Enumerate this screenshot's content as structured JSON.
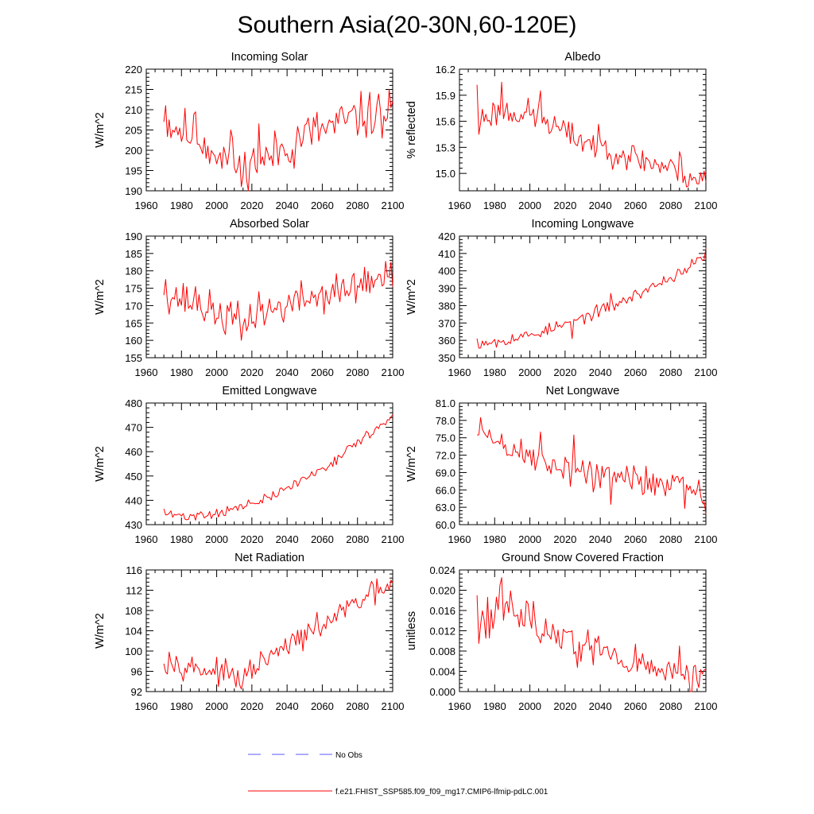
{
  "figure": {
    "title": "Southern Asia(20-30N,60-120E)",
    "legend": {
      "obs_label": "No Obs",
      "model_label": "f.e21.FHIST_SSP585.f09_f09_mg17.CMIP6-lfmip-pdLC.001"
    },
    "colors": {
      "model": "#ff0000",
      "obs": "#5a5aff",
      "axis": "#000000"
    }
  },
  "chart_data": [
    {
      "type": "line",
      "title": "Incoming Solar",
      "ylabel": "W/m^2",
      "xlim": [
        1960,
        2100
      ],
      "ylim": [
        190,
        220
      ],
      "xticks": [
        "1960",
        "1980",
        "2000",
        "2020",
        "2040",
        "2060",
        "2080",
        "2100"
      ],
      "yticks": [
        "190",
        "195",
        "200",
        "205",
        "210",
        "215",
        "220"
      ],
      "series": [
        {
          "name": "model",
          "x_start": 1970,
          "x_end": 2100,
          "anchors": [
            [
              1970,
              207.5
            ],
            [
              1980,
              205
            ],
            [
              1990,
              203
            ],
            [
              2000,
              200
            ],
            [
              2010,
              197
            ],
            [
              2015,
              195
            ],
            [
              2020,
              197
            ],
            [
              2030,
              198
            ],
            [
              2040,
              201.5
            ],
            [
              2050,
              204
            ],
            [
              2060,
              205
            ],
            [
              2070,
              206.5
            ],
            [
              2080,
              208
            ],
            [
              2090,
              209
            ],
            [
              2100,
              210
            ]
          ],
          "amplitude": 5,
          "seed": 11,
          "points": [
            [
              1970,
              207
            ],
            [
              1971,
              211
            ],
            [
              1984,
              202
            ],
            [
              1988,
              209.5
            ],
            [
              1994,
              198
            ],
            [
              2003,
              195.5
            ],
            [
              2008,
              205
            ],
            [
              2014,
              191
            ],
            [
              2024,
              206.5
            ],
            [
              2044,
              195.5
            ],
            [
              2094,
              203
            ],
            [
              2098,
              215
            ]
          ]
        }
      ]
    },
    {
      "type": "line",
      "title": "Albedo",
      "ylabel": "% reflected",
      "xlim": [
        1960,
        2100
      ],
      "ylim": [
        14.8,
        16.2
      ],
      "xticks": [
        "1960",
        "1980",
        "2000",
        "2020",
        "2040",
        "2060",
        "2080",
        "2100"
      ],
      "yticks": [
        "15.0",
        "15.3",
        "15.6",
        "15.9",
        "16.2"
      ],
      "series": [
        {
          "name": "model",
          "x_start": 1970,
          "x_end": 2100,
          "anchors": [
            [
              1970,
              15.62
            ],
            [
              1980,
              15.7
            ],
            [
              1990,
              15.72
            ],
            [
              2000,
              15.68
            ],
            [
              2010,
              15.6
            ],
            [
              2020,
              15.45
            ],
            [
              2030,
              15.38
            ],
            [
              2040,
              15.32
            ],
            [
              2050,
              15.25
            ],
            [
              2060,
              15.18
            ],
            [
              2070,
              15.12
            ],
            [
              2080,
              15.06
            ],
            [
              2090,
              14.98
            ],
            [
              2100,
              14.93
            ]
          ],
          "amplitude": 0.15,
          "seed": 23,
          "points": [
            [
              1970,
              16.02
            ],
            [
              1971,
              15.45
            ],
            [
              1984,
              16.05
            ],
            [
              1990,
              15.6
            ],
            [
              2006,
              15.95
            ],
            [
              2012,
              15.48
            ],
            [
              2024,
              15.58
            ],
            [
              2038,
              15.27
            ],
            [
              2085,
              15.25
            ],
            [
              2095,
              14.88
            ],
            [
              2100,
              14.9
            ]
          ]
        }
      ]
    },
    {
      "type": "line",
      "title": "Absorbed Solar",
      "ylabel": "W/m^2",
      "xlim": [
        1960,
        2100
      ],
      "ylim": [
        155,
        190
      ],
      "xticks": [
        "1960",
        "1980",
        "2000",
        "2020",
        "2040",
        "2060",
        "2080",
        "2100"
      ],
      "yticks": [
        "155",
        "160",
        "165",
        "170",
        "175",
        "180",
        "185",
        "190"
      ],
      "series": [
        {
          "name": "model",
          "x_start": 1970,
          "x_end": 2100,
          "anchors": [
            [
              1970,
              174
            ],
            [
              1980,
              172
            ],
            [
              1990,
              170
            ],
            [
              2000,
              168
            ],
            [
              2010,
              166
            ],
            [
              2015,
              165
            ],
            [
              2020,
              167
            ],
            [
              2030,
              168.5
            ],
            [
              2040,
              170
            ],
            [
              2050,
              172
            ],
            [
              2060,
              173
            ],
            [
              2070,
              174
            ],
            [
              2080,
              175.5
            ],
            [
              2090,
              177
            ],
            [
              2100,
              178
            ]
          ],
          "amplitude": 4.5,
          "seed": 37,
          "points": [
            [
              1970,
              173
            ],
            [
              1971,
              177.5
            ],
            [
              1988,
              175.5
            ],
            [
              2004,
              163
            ],
            [
              2014,
              160
            ],
            [
              2024,
              174
            ],
            [
              2084,
              181
            ],
            [
              2099,
              182.5
            ]
          ]
        }
      ]
    },
    {
      "type": "line",
      "title": "Incoming Longwave",
      "ylabel": "W/m^2",
      "xlim": [
        1960,
        2100
      ],
      "ylim": [
        350,
        420
      ],
      "xticks": [
        "1960",
        "1980",
        "2000",
        "2020",
        "2040",
        "2060",
        "2080",
        "2100"
      ],
      "yticks": [
        "350",
        "360",
        "370",
        "380",
        "390",
        "400",
        "410",
        "420"
      ],
      "series": [
        {
          "name": "model",
          "x_start": 1970,
          "x_end": 2100,
          "anchors": [
            [
              1970,
              359
            ],
            [
              1980,
              360
            ],
            [
              1990,
              361
            ],
            [
              2000,
              363
            ],
            [
              2010,
              366
            ],
            [
              2020,
              369
            ],
            [
              2030,
              373
            ],
            [
              2040,
              377
            ],
            [
              2050,
              381
            ],
            [
              2060,
              386
            ],
            [
              2070,
              391
            ],
            [
              2080,
              396
            ],
            [
              2090,
              402
            ],
            [
              2100,
              408
            ]
          ],
          "amplitude": 3,
          "seed": 53,
          "points": [
            [
              1970,
              361
            ],
            [
              1971,
              355.5
            ],
            [
              1981,
              356
            ],
            [
              2024,
              361
            ],
            [
              2046,
              387
            ],
            [
              2098,
              406
            ],
            [
              2100,
              413
            ]
          ]
        }
      ]
    },
    {
      "type": "line",
      "title": "Emitted Longwave",
      "ylabel": "W/m^2",
      "xlim": [
        1960,
        2100
      ],
      "ylim": [
        430,
        480
      ],
      "xticks": [
        "1960",
        "1980",
        "2000",
        "2020",
        "2040",
        "2060",
        "2080",
        "2100"
      ],
      "yticks": [
        "430",
        "440",
        "450",
        "460",
        "470",
        "480"
      ],
      "series": [
        {
          "name": "model",
          "x_start": 1970,
          "x_end": 2100,
          "anchors": [
            [
              1970,
              434.5
            ],
            [
              1980,
              433.5
            ],
            [
              1990,
              434
            ],
            [
              2000,
              435
            ],
            [
              2010,
              436.5
            ],
            [
              2020,
              438.5
            ],
            [
              2030,
              441
            ],
            [
              2040,
              445
            ],
            [
              2050,
              449
            ],
            [
              2060,
              453
            ],
            [
              2070,
              458
            ],
            [
              2080,
              464
            ],
            [
              2090,
              469
            ],
            [
              2100,
              474
            ]
          ],
          "amplitude": 1.8,
          "seed": 71,
          "points": [
            [
              1970,
              436.5
            ],
            [
              1971,
              434
            ],
            [
              1983,
              432
            ],
            [
              1997,
              432.5
            ],
            [
              2096,
              471
            ],
            [
              2100,
              475
            ]
          ]
        }
      ]
    },
    {
      "type": "line",
      "title": "Net Longwave",
      "ylabel": "W/m^2",
      "xlim": [
        1960,
        2100
      ],
      "ylim": [
        60,
        81
      ],
      "xticks": [
        "1960",
        "1980",
        "2000",
        "2020",
        "2040",
        "2060",
        "2080",
        "2100"
      ],
      "yticks": [
        "60.0",
        "63.0",
        "66.0",
        "69.0",
        "72.0",
        "75.0",
        "78.0",
        "81.0"
      ],
      "series": [
        {
          "name": "model",
          "x_start": 1970,
          "x_end": 2100,
          "anchors": [
            [
              1970,
              76
            ],
            [
              1980,
              74.5
            ],
            [
              1990,
              73
            ],
            [
              2000,
              71.5
            ],
            [
              2010,
              70.5
            ],
            [
              2020,
              70
            ],
            [
              2030,
              69
            ],
            [
              2040,
              68.5
            ],
            [
              2050,
              68
            ],
            [
              2060,
              67.8
            ],
            [
              2070,
              67.5
            ],
            [
              2080,
              67.3
            ],
            [
              2090,
              67
            ],
            [
              2100,
              66
            ]
          ],
          "amplitude": 2.5,
          "seed": 89,
          "points": [
            [
              1970,
              75.5
            ],
            [
              1972,
              78.5
            ],
            [
              2006,
              76
            ],
            [
              2025,
              75.5
            ],
            [
              2046,
              63.5
            ],
            [
              2088,
              62.8
            ],
            [
              2100,
              61.8
            ]
          ]
        }
      ]
    },
    {
      "type": "line",
      "title": "Net Radiation",
      "ylabel": "W/m^2",
      "xlim": [
        1960,
        2100
      ],
      "ylim": [
        92,
        116
      ],
      "xticks": [
        "1960",
        "1980",
        "2000",
        "2020",
        "2040",
        "2060",
        "2080",
        "2100"
      ],
      "yticks": [
        "92",
        "96",
        "100",
        "104",
        "108",
        "112",
        "116"
      ],
      "series": [
        {
          "name": "model",
          "x_start": 1970,
          "x_end": 2100,
          "anchors": [
            [
              1970,
              98
            ],
            [
              1980,
              97.5
            ],
            [
              1990,
              96.5
            ],
            [
              2000,
              96
            ],
            [
              2010,
              95
            ],
            [
              2015,
              94
            ],
            [
              2020,
              96.5
            ],
            [
              2030,
              98.5
            ],
            [
              2040,
              101
            ],
            [
              2050,
              103
            ],
            [
              2060,
              105
            ],
            [
              2070,
              107.5
            ],
            [
              2080,
              109.5
            ],
            [
              2090,
              111.5
            ],
            [
              2100,
              113
            ]
          ],
          "amplitude": 2,
          "seed": 97,
          "points": [
            [
              1970,
              97.5
            ],
            [
              1973,
              99.8
            ],
            [
              2014,
              92.5
            ],
            [
              2099,
              114
            ]
          ]
        }
      ]
    },
    {
      "type": "line",
      "title": "Ground Snow Covered Fraction",
      "ylabel": "unitless",
      "xlim": [
        1960,
        2100
      ],
      "ylim": [
        0,
        0.024
      ],
      "xticks": [
        "1960",
        "1980",
        "2000",
        "2020",
        "2040",
        "2060",
        "2080",
        "2100"
      ],
      "yticks": [
        "0.000",
        "0.004",
        "0.008",
        "0.012",
        "0.016",
        "0.020",
        "0.024"
      ],
      "series": [
        {
          "name": "model",
          "x_start": 1970,
          "x_end": 2100,
          "anchors": [
            [
              1970,
              0.015
            ],
            [
              1980,
              0.016
            ],
            [
              1990,
              0.0165
            ],
            [
              2000,
              0.014
            ],
            [
              2010,
              0.012
            ],
            [
              2020,
              0.0105
            ],
            [
              2030,
              0.009
            ],
            [
              2040,
              0.008
            ],
            [
              2050,
              0.0065
            ],
            [
              2060,
              0.0055
            ],
            [
              2070,
              0.0045
            ],
            [
              2080,
              0.0038
            ],
            [
              2090,
              0.0025
            ],
            [
              2095,
              0.0012
            ],
            [
              2100,
              0.003
            ]
          ],
          "amplitude": 0.0035,
          "seed": 113,
          "points": [
            [
              1970,
              0.019
            ],
            [
              1971,
              0.0095
            ],
            [
              1984,
              0.0225
            ],
            [
              2085,
              0.009
            ],
            [
              2096,
              0.0008
            ],
            [
              2100,
              0.0045
            ]
          ]
        }
      ]
    }
  ]
}
